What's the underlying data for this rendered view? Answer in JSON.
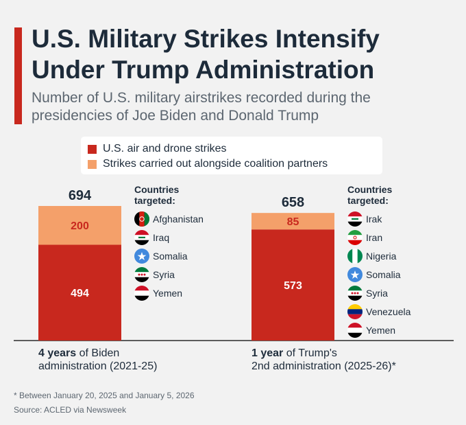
{
  "header": {
    "title": "U.S. Military Strikes Intensify Under Trump Administration",
    "subtitle": "Number of U.S. military airstrikes recorded during the presidencies of Joe Biden and Donald Trump"
  },
  "legend": {
    "items": [
      {
        "label": "U.S. air and drone strikes",
        "color": "#c8281e"
      },
      {
        "label": "Strikes carried out alongside coalition partners",
        "color": "#f4a06a"
      }
    ]
  },
  "chart_data": {
    "type": "bar",
    "stacked": true,
    "title": "U.S. Military Strikes Intensify Under Trump Administration",
    "subtitle": "Number of U.S. military airstrikes recorded during the presidencies of Joe Biden and Donald Trump",
    "categories": [
      "4 years of Biden administration (2021-25)",
      "1 year of Trump's 2nd administration (2025-26)*"
    ],
    "series": [
      {
        "name": "U.S. air and drone strikes",
        "color": "#c8281e",
        "values": [
          494,
          573
        ]
      },
      {
        "name": "Strikes carried out alongside coalition partners",
        "color": "#f4a06a",
        "values": [
          200,
          85
        ]
      }
    ],
    "totals": [
      694,
      658
    ],
    "ylim": [
      0,
      694
    ]
  },
  "groups": [
    {
      "total_label": "694",
      "seg_labels": [
        "494",
        "200"
      ],
      "period_bold": "4 years",
      "period_rest_line1": " of Biden",
      "period_line2": "administration (2021-25)",
      "countries_heading": "Countries targeted:",
      "countries": [
        "Afghanistan",
        "Iraq",
        "Somalia",
        "Syria",
        "Yemen"
      ]
    },
    {
      "total_label": "658",
      "seg_labels": [
        "573",
        "85"
      ],
      "period_bold": "1 year",
      "period_rest_line1": " of Trump's",
      "period_line2": "2nd administration (2025-26)*",
      "countries_heading": "Countries targeted:",
      "countries": [
        "Irak",
        "Iran",
        "Nigeria",
        "Somalia",
        "Syria",
        "Venezuela",
        "Yemen"
      ]
    }
  ],
  "footnotes": {
    "note": "* Between January 20, 2025 and January 5, 2026",
    "source": "Source: ACLED via Newsweek"
  }
}
